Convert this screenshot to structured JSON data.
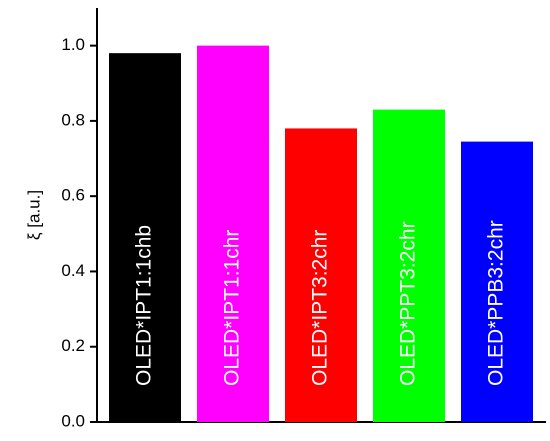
{
  "chart_data": {
    "type": "bar",
    "ylabel": "ξ [a.u.]",
    "categories": [
      "OLED*IPT1:1chb",
      "OLED*IPT1:1chr",
      "OLED*IPT3:2chr",
      "OLED*PPT3:2chr",
      "OLED*PPB3:2chr"
    ],
    "values": [
      0.98,
      1.0,
      0.78,
      0.83,
      0.745
    ],
    "colors": [
      "#000000",
      "#ff00ff",
      "#ff0000",
      "#00ff00",
      "#0000ff"
    ],
    "ylim": [
      0,
      1.1
    ],
    "yticks": [
      {
        "value": 0,
        "label": "0.0"
      },
      0.2,
      0.4,
      0.6,
      0.8,
      {
        "value": 1,
        "label": "1.0"
      }
    ]
  }
}
